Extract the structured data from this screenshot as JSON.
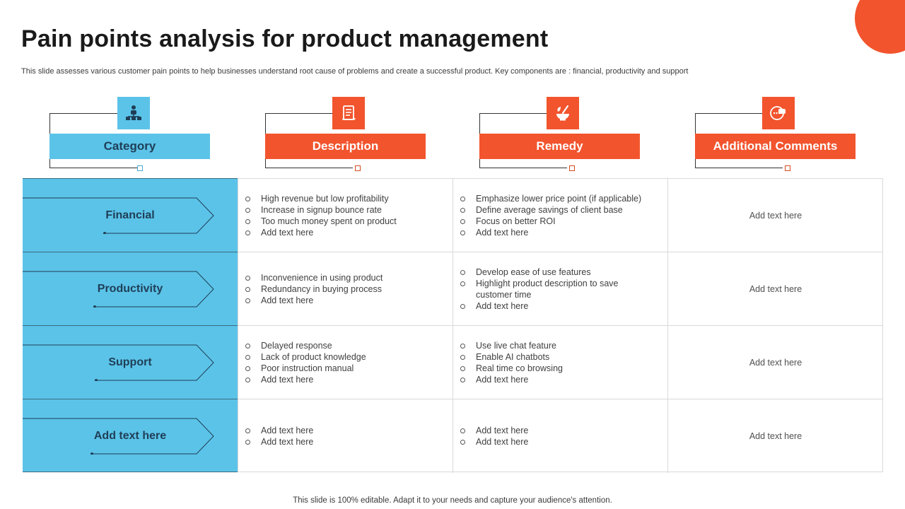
{
  "title": "Pain points analysis for product management",
  "subtitle": "This slide assesses various customer pain points to help businesses understand root cause of problems and create a successful product. Key components are : financial, productivity and support",
  "footer": "This slide is 100% editable. Adapt it to your needs and capture your audience's attention.",
  "colors": {
    "accent_blue": "#5bc3e8",
    "accent_orange": "#f2542d"
  },
  "headers": [
    {
      "label": "Category",
      "icon": "org-chart-icon",
      "color": "#5bc3e8"
    },
    {
      "label": "Description",
      "icon": "document-icon",
      "color": "#f2542d"
    },
    {
      "label": "Remedy",
      "icon": "mortar-pestle-icon",
      "color": "#f2542d"
    },
    {
      "label": "Additional Comments",
      "icon": "chat-bubbles-icon",
      "color": "#f2542d"
    }
  ],
  "rows": [
    {
      "category": "Financial",
      "description": [
        "High revenue  but low profitability",
        "Increase in signup bounce rate",
        "Too much money spent on product",
        "Add text here"
      ],
      "remedy": [
        "Emphasize lower price point (if applicable)",
        "Define average  savings of client base",
        "Focus on better ROI",
        "Add text here"
      ],
      "comment": "Add text here"
    },
    {
      "category": "Productivity",
      "description": [
        "Inconvenience  in using product",
        "Redundancy in buying process",
        "Add text here"
      ],
      "remedy": [
        "Develop  ease of use features",
        "Highlight product description to save customer time",
        "Add text here"
      ],
      "comment": "Add text here"
    },
    {
      "category": "Support",
      "description": [
        "Delayed response",
        "Lack of product knowledge",
        "Poor instruction manual",
        "Add text here"
      ],
      "remedy": [
        "Use live  chat feature",
        "Enable AI chatbots",
        "Real time co browsing",
        "Add text here"
      ],
      "comment": "Add text here"
    },
    {
      "category": "Add text here",
      "description": [
        "Add text here",
        "Add text here"
      ],
      "remedy": [
        "Add text here",
        "Add text here"
      ],
      "comment": "Add text here"
    }
  ]
}
